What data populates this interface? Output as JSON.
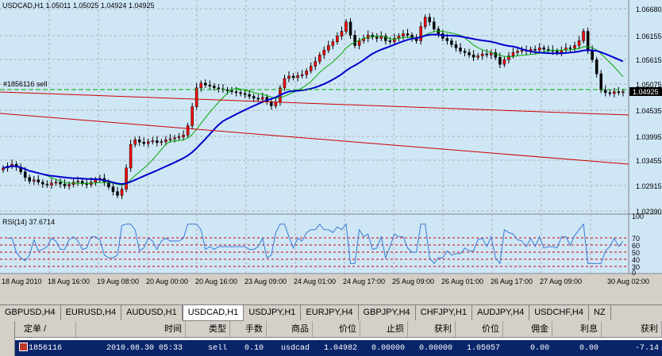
{
  "chart": {
    "header": "USDCAD,H1  1.05011 1.05025 1.04924 1.04925",
    "order_label": "#1856116 sell",
    "current_price": "1.04925",
    "price_ticks": [
      "1.06680",
      "1.06155",
      "1.05615",
      "1.05075",
      "1.04535",
      "1.03995",
      "1.03455",
      "1.02915",
      "1.02390"
    ],
    "rsi_label": "RSI(14) 37.6714",
    "rsi_ticks": [
      "100",
      "70",
      "60",
      "50",
      "40",
      "30",
      "0"
    ],
    "time_labels": [
      "18 Aug 2010",
      "18 Aug 16:00",
      "19 Aug 08:00",
      "20 Aug 00:00",
      "20 Aug 16:00",
      "23 Aug 09:00",
      "24 Aug 01:00",
      "24 Aug 17:00",
      "25 Aug 09:00",
      "26 Aug 01:00",
      "26 Aug 17:00",
      "27 Aug 09:00",
      "30 Aug 02:00"
    ],
    "colors": {
      "bull": "#ff0000",
      "bear": "#000000",
      "ma_fast": "#00aa00",
      "ma_slow": "#0000cc",
      "rsi": "#3a7bd5",
      "grid": "#b0b0b0"
    }
  },
  "tabs": [
    {
      "label": "GBPUSD,H4",
      "active": false
    },
    {
      "label": "EURUSD,H4",
      "active": false
    },
    {
      "label": "AUDUSD,H1",
      "active": false
    },
    {
      "label": "USDCAD,H1",
      "active": true
    },
    {
      "label": "USDJPY,H1",
      "active": false
    },
    {
      "label": "EURJPY,H4",
      "active": false
    },
    {
      "label": "GBPJPY,H4",
      "active": false
    },
    {
      "label": "CHFJPY,H1",
      "active": false
    },
    {
      "label": "AUDJPY,H4",
      "active": false
    },
    {
      "label": "USDCHF,H4",
      "active": false
    },
    {
      "label": "NZ",
      "active": false
    }
  ],
  "terminal": {
    "headers": [
      "定单  /",
      "时间",
      "类型",
      "手数",
      "商品",
      "价位",
      "止损",
      "获利",
      "价位",
      "佣金",
      "利息",
      "获利"
    ],
    "row": [
      "1856116",
      "2010.08.30 05:33",
      "sell",
      "0.10",
      "usdcad",
      "1.04982",
      "0.00000",
      "0.00000",
      "1.05057",
      "0.00",
      "0.00",
      "-7.14"
    ]
  }
}
